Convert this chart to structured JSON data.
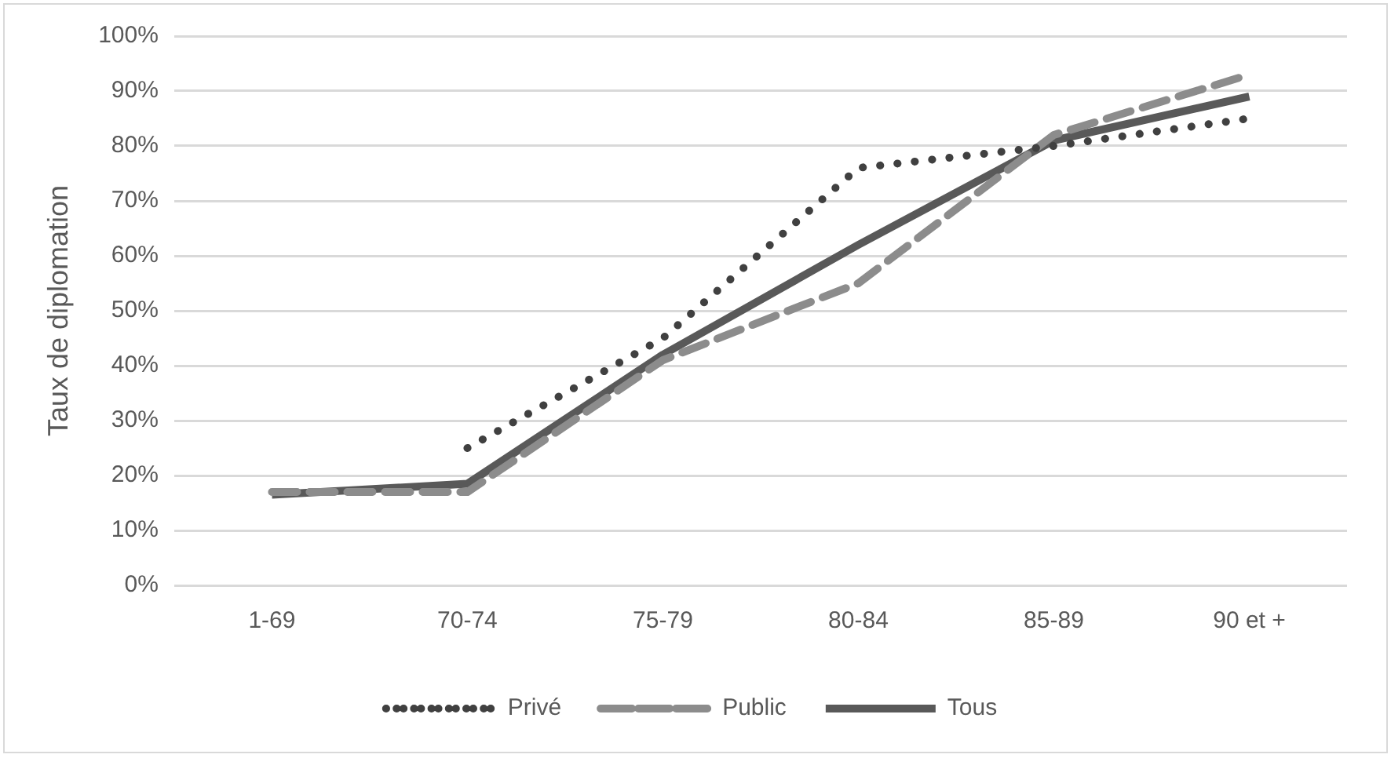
{
  "chart_data": {
    "type": "line",
    "ylabel": "Taux de diplomation",
    "categories": [
      "1-69",
      "70-74",
      "75-79",
      "80-84",
      "85-89",
      "90 et +"
    ],
    "series": [
      {
        "name": "Privé",
        "color": "#404040",
        "line_style": "dotted",
        "values": [
          null,
          25,
          45,
          76,
          80,
          85
        ]
      },
      {
        "name": "Public",
        "color": "#8c8c8c",
        "line_style": "dashed",
        "values": [
          17,
          17,
          41,
          55,
          82,
          93
        ]
      },
      {
        "name": "Tous",
        "color": "#595959",
        "line_style": "solid",
        "values": [
          16.5,
          18.5,
          42,
          62,
          81,
          89
        ]
      }
    ],
    "ylim": [
      0,
      100
    ],
    "yticks": [
      {
        "value": 0,
        "label": "0%"
      },
      {
        "value": 10,
        "label": "10%"
      },
      {
        "value": 20,
        "label": "20%"
      },
      {
        "value": 30,
        "label": "30%"
      },
      {
        "value": 40,
        "label": "40%"
      },
      {
        "value": 50,
        "label": "50%"
      },
      {
        "value": 60,
        "label": "60%"
      },
      {
        "value": 70,
        "label": "70%"
      },
      {
        "value": 80,
        "label": "80%"
      },
      {
        "value": 90,
        "label": "90%"
      },
      {
        "value": 100,
        "label": "100%"
      }
    ],
    "grid": "y",
    "legend": "bottom",
    "marker": "none"
  }
}
